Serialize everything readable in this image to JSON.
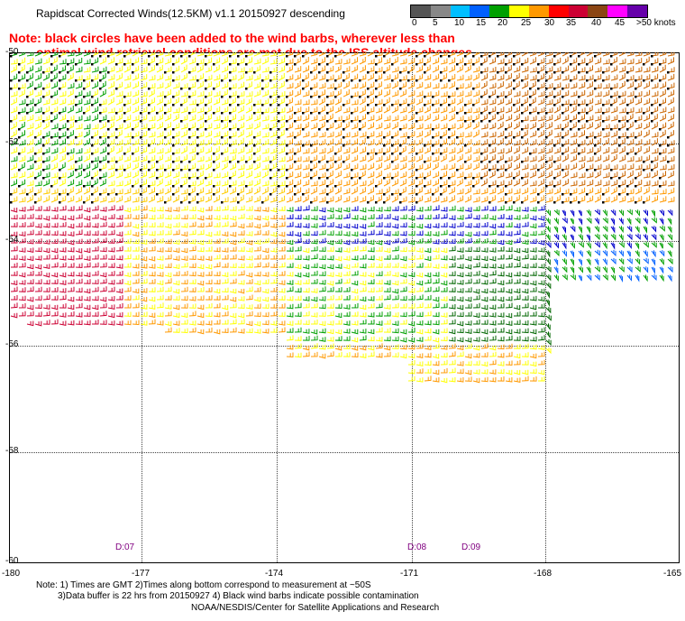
{
  "title": "Rapidscat Corrected Winds(12.5KM) v1.1 20150927 descending",
  "note_line1": "Note: black circles have been added to the wind barbs, wherever less than",
  "note_line2": "optimal wind retrieval conditions are met due to the ISS altitude changes",
  "legend": {
    "labels": [
      "0",
      "5",
      "10",
      "15",
      "20",
      "25",
      "30",
      "35",
      "40",
      "45",
      ">50 knots"
    ],
    "colors": [
      "#555555",
      "#888888",
      "#00bfff",
      "#0060ff",
      "#00a000",
      "#ffff00",
      "#ff9900",
      "#ff0000",
      "#cc0033",
      "#8b4513",
      "#ff00ff",
      "#6600aa"
    ]
  },
  "lat_labels": [
    "-52",
    "-54",
    "-56",
    "-58",
    "-60"
  ],
  "lat_top": "-50",
  "lon_labels": [
    "-180",
    "-177",
    "-174",
    "-171",
    "-168",
    "-165"
  ],
  "time_labels": [
    "D:07",
    "D:08",
    "D:09"
  ],
  "footer": {
    "line1": "Note: 1) Times are GMT 2)Times along bottom correspond to measurement at ~50S",
    "line2": "3)Data buffer is 22 hrs from 20150927 4) Black wind barbs indicate possible contamination",
    "line3": "NOAA/NESDIS/Center for Satellite Applications and Research"
  }
}
